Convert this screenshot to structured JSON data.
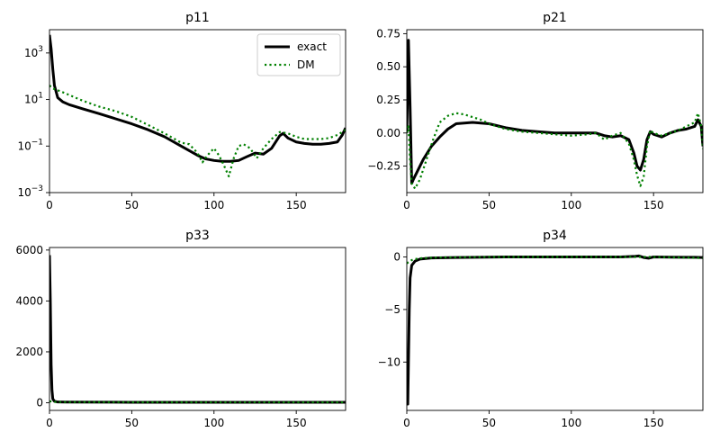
{
  "chart_data": [
    {
      "type": "line",
      "title": "p11",
      "yscale": "log",
      "xlim": [
        0,
        180
      ],
      "ylim": [
        0.001,
        10000
      ],
      "xticks": [
        0,
        50,
        100,
        150
      ],
      "yticks": [
        0.001,
        0.1,
        10,
        1000
      ],
      "ytick_labels": [
        {
          "b": "10",
          "e": "−3"
        },
        {
          "b": "10",
          "e": "−1"
        },
        {
          "b": "10",
          "e": "1"
        },
        {
          "b": "10",
          "e": "3"
        }
      ],
      "legend": {
        "position": "top-right",
        "entries": [
          "exact",
          "DM"
        ]
      },
      "series": [
        {
          "name": "exact",
          "color": "#000000",
          "style": "solid",
          "x": [
            0,
            1,
            2,
            3,
            5,
            8,
            12,
            20,
            30,
            40,
            50,
            60,
            70,
            80,
            90,
            95,
            100,
            105,
            110,
            115,
            120,
            125,
            130,
            135,
            140,
            142,
            145,
            150,
            155,
            160,
            165,
            170,
            175,
            178,
            180
          ],
          "y": [
            6000,
            1500,
            200,
            40,
            12,
            8,
            6,
            4,
            2.5,
            1.5,
            0.9,
            0.5,
            0.25,
            0.1,
            0.04,
            0.028,
            0.024,
            0.022,
            0.022,
            0.024,
            0.035,
            0.05,
            0.045,
            0.08,
            0.28,
            0.35,
            0.22,
            0.15,
            0.13,
            0.12,
            0.12,
            0.13,
            0.15,
            0.3,
            0.6
          ]
        },
        {
          "name": "DM",
          "color": "#008000",
          "style": "dotted",
          "x": [
            0,
            2,
            5,
            10,
            20,
            30,
            40,
            50,
            60,
            70,
            80,
            85,
            90,
            93,
            96,
            100,
            103,
            106,
            109,
            112,
            115,
            118,
            122,
            126,
            130,
            135,
            140,
            145,
            150,
            155,
            160,
            165,
            170,
            175,
            178,
            180
          ],
          "y": [
            40,
            30,
            25,
            18,
            9,
            5,
            3.2,
            1.8,
            0.8,
            0.35,
            0.14,
            0.12,
            0.05,
            0.02,
            0.04,
            0.08,
            0.04,
            0.015,
            0.005,
            0.03,
            0.1,
            0.12,
            0.08,
            0.03,
            0.08,
            0.2,
            0.4,
            0.35,
            0.25,
            0.2,
            0.2,
            0.2,
            0.22,
            0.3,
            0.4,
            0.5
          ]
        }
      ]
    },
    {
      "type": "line",
      "title": "p21",
      "xlim": [
        0,
        180
      ],
      "ylim": [
        -0.45,
        0.78
      ],
      "xticks": [
        0,
        50,
        100,
        150
      ],
      "yticks": [
        -0.25,
        0,
        0.25,
        0.5,
        0.75
      ],
      "ytick_labels": [
        "−0.25",
        "0.00",
        "0.25",
        "0.50",
        "0.75"
      ],
      "series": [
        {
          "name": "exact",
          "color": "#000000",
          "style": "solid",
          "x": [
            0,
            1,
            2,
            3,
            4,
            6,
            10,
            15,
            20,
            25,
            30,
            40,
            50,
            60,
            70,
            80,
            90,
            100,
            110,
            115,
            120,
            125,
            130,
            135,
            138,
            140,
            142,
            144,
            146,
            148,
            150,
            155,
            160,
            165,
            170,
            175,
            177,
            179,
            180
          ],
          "y": [
            0.0,
            0.7,
            0.2,
            -0.38,
            -0.35,
            -0.3,
            -0.2,
            -0.1,
            -0.03,
            0.03,
            0.07,
            0.08,
            0.07,
            0.04,
            0.02,
            0.01,
            0.0,
            0.0,
            0.0,
            0.0,
            -0.02,
            -0.03,
            -0.02,
            -0.05,
            -0.15,
            -0.25,
            -0.28,
            -0.2,
            -0.05,
            0.01,
            -0.01,
            -0.03,
            0.0,
            0.02,
            0.03,
            0.05,
            0.1,
            0.05,
            -0.1
          ]
        },
        {
          "name": "DM",
          "color": "#008000",
          "style": "dotted",
          "x": [
            0,
            1,
            2,
            3,
            5,
            8,
            12,
            16,
            20,
            25,
            30,
            35,
            40,
            45,
            50,
            60,
            70,
            80,
            90,
            100,
            110,
            115,
            120,
            125,
            130,
            135,
            138,
            140,
            142,
            144,
            146,
            148,
            150,
            155,
            160,
            165,
            170,
            175,
            177,
            179,
            180
          ],
          "y": [
            0.0,
            0.05,
            -0.2,
            -0.38,
            -0.42,
            -0.35,
            -0.2,
            -0.05,
            0.08,
            0.13,
            0.15,
            0.14,
            0.12,
            0.1,
            0.07,
            0.03,
            0.01,
            0.0,
            -0.01,
            -0.02,
            -0.01,
            0.0,
            -0.05,
            -0.02,
            0.0,
            -0.08,
            -0.2,
            -0.32,
            -0.4,
            -0.33,
            -0.1,
            0.02,
            0.0,
            -0.02,
            0.0,
            0.02,
            0.05,
            0.08,
            0.15,
            0.05,
            -0.12
          ]
        }
      ]
    },
    {
      "type": "line",
      "title": "p33",
      "xlim": [
        0,
        180
      ],
      "ylim": [
        -300,
        6100
      ],
      "xticks": [
        0,
        50,
        100,
        150
      ],
      "yticks": [
        0,
        2000,
        4000,
        6000
      ],
      "ytick_labels": [
        "0",
        "2000",
        "4000",
        "6000"
      ],
      "series": [
        {
          "name": "exact",
          "color": "#000000",
          "style": "solid",
          "x": [
            0,
            0.5,
            1,
            1.5,
            2,
            3,
            5,
            10,
            50,
            100,
            150,
            180
          ],
          "y": [
            5800,
            4000,
            1500,
            500,
            150,
            60,
            30,
            25,
            20,
            18,
            20,
            20
          ]
        },
        {
          "name": "DM",
          "color": "#008000",
          "style": "dotted",
          "x": [
            0,
            1,
            2,
            3,
            5,
            10,
            50,
            100,
            150,
            180
          ],
          "y": [
            60,
            50,
            40,
            35,
            30,
            28,
            24,
            20,
            20,
            20
          ]
        }
      ]
    },
    {
      "type": "line",
      "title": "p34",
      "xlim": [
        0,
        180
      ],
      "ylim": [
        -14.6,
        0.9
      ],
      "xticks": [
        0,
        50,
        100,
        150
      ],
      "yticks": [
        -10,
        -5,
        0
      ],
      "ytick_labels": [
        "−10",
        "−5",
        "0"
      ],
      "series": [
        {
          "name": "exact",
          "color": "#000000",
          "style": "solid",
          "x": [
            0,
            0.6,
            1,
            1.5,
            2,
            3,
            5,
            8,
            15,
            30,
            60,
            100,
            130,
            138,
            141,
            144,
            147,
            150,
            160,
            175,
            180
          ],
          "y": [
            -14,
            -14,
            -10,
            -5,
            -2,
            -0.8,
            -0.4,
            -0.2,
            -0.1,
            -0.05,
            0,
            0,
            0,
            0.05,
            0.1,
            -0.05,
            -0.12,
            0.0,
            -0.02,
            -0.03,
            -0.05
          ]
        },
        {
          "name": "DM",
          "color": "#008000",
          "style": "dotted",
          "x": [
            0,
            1,
            2,
            3,
            5,
            10,
            20,
            50,
            100,
            150,
            180
          ],
          "y": [
            -0.6,
            -0.5,
            -0.4,
            -0.3,
            -0.2,
            -0.1,
            -0.05,
            0,
            0,
            0,
            -0.1
          ]
        }
      ]
    }
  ]
}
